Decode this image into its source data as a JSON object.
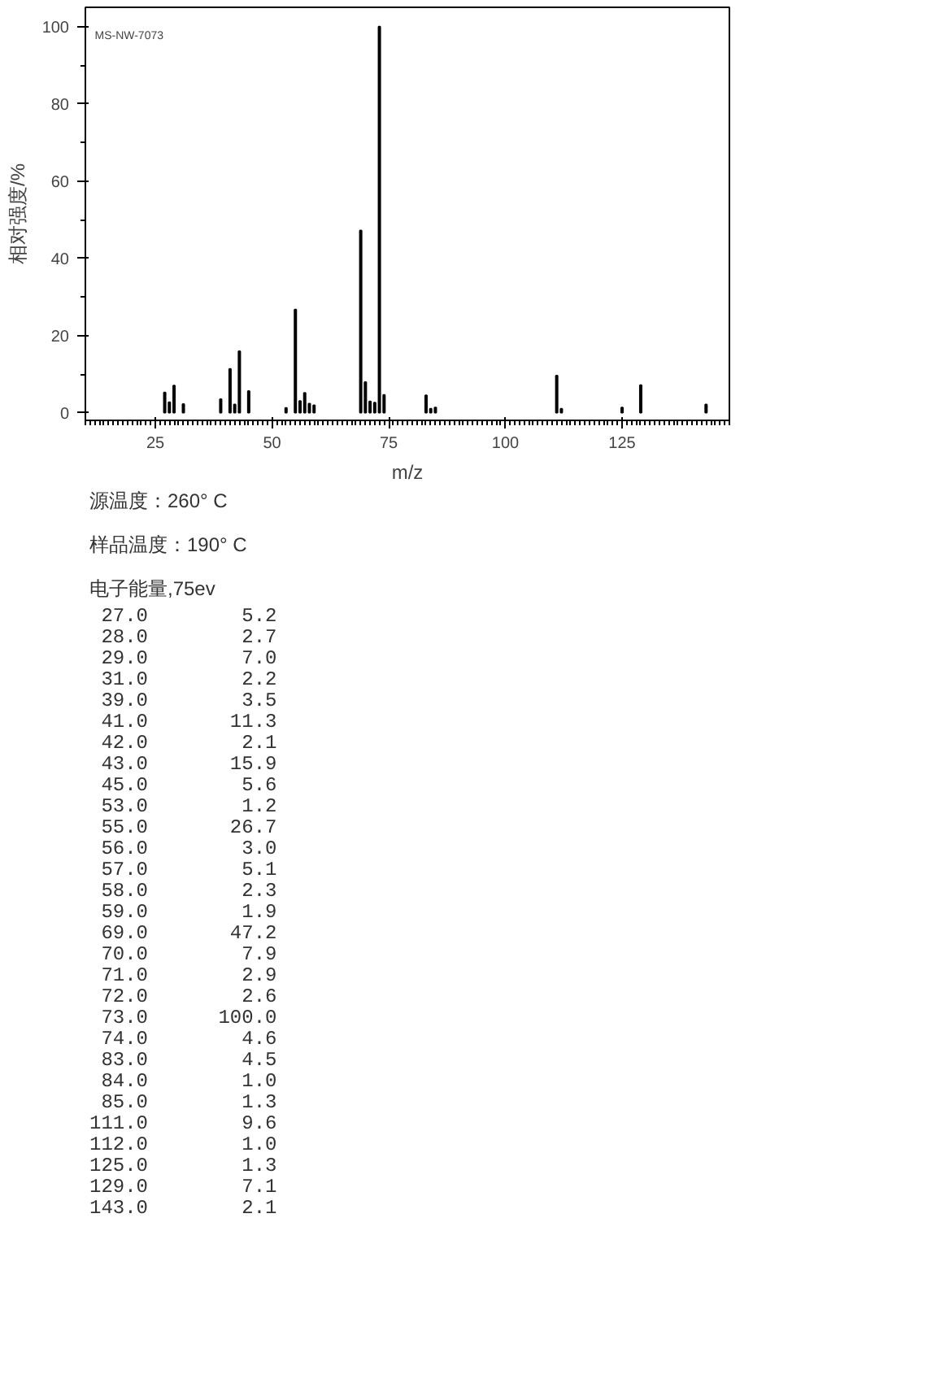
{
  "chart_data": {
    "type": "bar",
    "xlabel": "m/z",
    "ylabel": "相对强度/%",
    "x": [
      27,
      28,
      29,
      31,
      39,
      41,
      42,
      43,
      45,
      53,
      55,
      56,
      57,
      58,
      59,
      69,
      70,
      71,
      72,
      73,
      74,
      83,
      84,
      85,
      111,
      112,
      125,
      129,
      143
    ],
    "values": [
      5.2,
      2.7,
      7.0,
      2.2,
      3.5,
      11.3,
      2.1,
      15.9,
      5.6,
      1.2,
      26.7,
      3.0,
      5.1,
      2.3,
      1.9,
      47.2,
      7.9,
      2.9,
      2.6,
      100.0,
      4.6,
      4.5,
      1.0,
      1.3,
      9.6,
      1.0,
      1.3,
      7.1,
      2.1
    ],
    "color": "#000000",
    "xlim": [
      10,
      148
    ],
    "xticks": [
      25,
      50,
      75,
      100,
      125
    ],
    "ylim": [
      -2,
      105
    ],
    "yticks": [
      0,
      20,
      40,
      60,
      80,
      100
    ],
    "grid": false,
    "annotations": [
      "MS-NW-7073",
      "源温度：260° C",
      "样品温度：190° C",
      "电子能量,75ev",
      " 27.0        5.2",
      " 28.0        2.7",
      " 29.0        7.0",
      " 31.0        2.2",
      " 39.0        3.5",
      " 41.0       11.3",
      " 42.0        2.1",
      " 43.0       15.9",
      " 45.0        5.6",
      " 53.0        1.2",
      " 55.0       26.7",
      " 56.0        3.0",
      " 57.0        5.1",
      " 58.0        2.3",
      " 59.0        1.9",
      " 69.0       47.2",
      " 70.0        7.9",
      " 71.0        2.9",
      " 72.0        2.6",
      " 73.0      100.0",
      " 74.0        4.6",
      " 83.0        4.5",
      " 84.0        1.0",
      " 85.0        1.3",
      "111.0        9.6",
      "112.0        1.0",
      "125.0        1.3",
      "129.0        7.1",
      "143.0        2.1"
    ]
  }
}
